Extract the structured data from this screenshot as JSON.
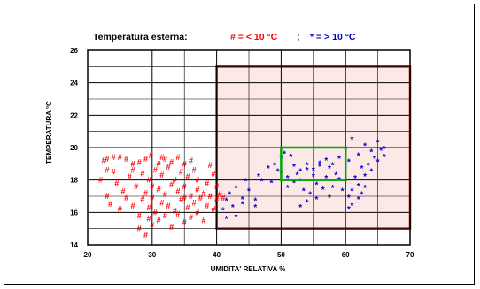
{
  "chart_data": {
    "type": "scatter",
    "title": {
      "main": "Temperatura esterna:",
      "cold_legend": "# = < 10 °C",
      "separator": ";",
      "warm_legend": "* = > 10 °C"
    },
    "xlabel": "UMIDITA' RELATIVA %",
    "ylabel": "TEMPERATURA °C",
    "xlim": [
      20,
      70
    ],
    "ylim": [
      14,
      26
    ],
    "x_ticks": [
      "20",
      "30",
      "40",
      "50",
      "60",
      "70"
    ],
    "y_ticks": [
      "14",
      "16",
      "18",
      "20",
      "22",
      "24",
      "26"
    ],
    "grid": true,
    "colors": {
      "cold": "#ff0000",
      "warm": "#0000cc",
      "outer_zone_border": "#a01010",
      "outer_zone_fill": "#fde8e8",
      "comfort_zone_border": "#00aa00"
    },
    "zones": [
      {
        "name": "outer-zone",
        "x": [
          40,
          70
        ],
        "y": [
          15,
          25
        ]
      },
      {
        "name": "comfort-zone",
        "x": [
          50,
          60
        ],
        "y": [
          18,
          20
        ]
      }
    ],
    "series": [
      {
        "name": "# = < 10 °C",
        "marker": "#",
        "points": [
          [
            22,
            18.0
          ],
          [
            22.5,
            19.2
          ],
          [
            23,
            17.0
          ],
          [
            23,
            19.3
          ],
          [
            23.5,
            16.5
          ],
          [
            24,
            19.4
          ],
          [
            24,
            18.5
          ],
          [
            24.5,
            17.8
          ],
          [
            25,
            19.4
          ],
          [
            25,
            16.2
          ],
          [
            25.5,
            17.3
          ],
          [
            26,
            19.3
          ],
          [
            26.5,
            18.2
          ],
          [
            27,
            16.4
          ],
          [
            27,
            19.0
          ],
          [
            27.5,
            17.6
          ],
          [
            28,
            15.8
          ],
          [
            28,
            19.1
          ],
          [
            28,
            15.0
          ],
          [
            28.5,
            16.8
          ],
          [
            28.5,
            18.4
          ],
          [
            29,
            14.6
          ],
          [
            29,
            17.2
          ],
          [
            29,
            19.3
          ],
          [
            29.5,
            15.6
          ],
          [
            29.5,
            16.3
          ],
          [
            29.5,
            18.0
          ],
          [
            29.8,
            19.5
          ],
          [
            30,
            16.9
          ],
          [
            30,
            17.6
          ],
          [
            30,
            15.2
          ],
          [
            30.5,
            18.6
          ],
          [
            30.5,
            16.0
          ],
          [
            31,
            17.4
          ],
          [
            31,
            19.0
          ],
          [
            31,
            15.5
          ],
          [
            31.5,
            16.6
          ],
          [
            31.5,
            18.3
          ],
          [
            32,
            17.1
          ],
          [
            32,
            19.3
          ],
          [
            32,
            15.8
          ],
          [
            32.5,
            16.4
          ],
          [
            32.5,
            18.8
          ],
          [
            33,
            17.7
          ],
          [
            33,
            19.1
          ],
          [
            33,
            15.1
          ],
          [
            33.5,
            16.1
          ],
          [
            33.5,
            18.0
          ],
          [
            34,
            17.3
          ],
          [
            34,
            19.4
          ],
          [
            34,
            15.9
          ],
          [
            34.5,
            16.8
          ],
          [
            34.5,
            18.5
          ],
          [
            35,
            17.6
          ],
          [
            35,
            19.0
          ],
          [
            35,
            15.4
          ],
          [
            35.5,
            16.3
          ],
          [
            35.5,
            18.2
          ],
          [
            36,
            17.0
          ],
          [
            36,
            19.2
          ],
          [
            36,
            15.7
          ],
          [
            36.5,
            16.6
          ],
          [
            36.5,
            18.6
          ],
          [
            37,
            17.4
          ],
          [
            37,
            18.0
          ],
          [
            37,
            16.0
          ],
          [
            37.5,
            16.9
          ],
          [
            38,
            17.2
          ],
          [
            38,
            15.5
          ],
          [
            38.5,
            16.4
          ],
          [
            38.5,
            17.8
          ],
          [
            39,
            18.9
          ],
          [
            39,
            17.0
          ],
          [
            39.5,
            16.2
          ],
          [
            39.5,
            18.4
          ],
          [
            40,
            17.6
          ],
          [
            40,
            16.8
          ],
          [
            40.5,
            17.1
          ],
          [
            41,
            16.9
          ],
          [
            26,
            16.9
          ],
          [
            23,
            18.6
          ],
          [
            27,
            18.6
          ],
          [
            31.5,
            19.4
          ],
          [
            35,
            16.9
          ]
        ]
      },
      {
        "name": "* = > 10 °C",
        "marker": "*",
        "points": [
          [
            41,
            16.2
          ],
          [
            41.5,
            15.7
          ],
          [
            41.5,
            16.8
          ],
          [
            42,
            17.2
          ],
          [
            42.5,
            16.4
          ],
          [
            43,
            15.8
          ],
          [
            43,
            17.6
          ],
          [
            44,
            16.9
          ],
          [
            44.5,
            18.0
          ],
          [
            45,
            17.4
          ],
          [
            46,
            16.8
          ],
          [
            46.5,
            18.3
          ],
          [
            47,
            18.0
          ],
          [
            48,
            18.8
          ],
          [
            48.5,
            17.9
          ],
          [
            49,
            19.0
          ],
          [
            49.5,
            18.6
          ],
          [
            50,
            19.4
          ],
          [
            50.5,
            19.7
          ],
          [
            51,
            18.2
          ],
          [
            51.5,
            19.5
          ],
          [
            52,
            18.9
          ],
          [
            52.5,
            18.4
          ],
          [
            53,
            18.0
          ],
          [
            53.5,
            17.4
          ],
          [
            54,
            18.7
          ],
          [
            54.5,
            17.2
          ],
          [
            55,
            18.3
          ],
          [
            55.5,
            17.8
          ],
          [
            56,
            18.9
          ],
          [
            56.5,
            17.5
          ],
          [
            57,
            18.2
          ],
          [
            57.5,
            18.8
          ],
          [
            58,
            17.6
          ],
          [
            58.5,
            18.4
          ],
          [
            59,
            18.1
          ],
          [
            59.5,
            17.4
          ],
          [
            60,
            18.0
          ],
          [
            60.5,
            17.0
          ],
          [
            61,
            17.4
          ],
          [
            61.5,
            18.2
          ],
          [
            62,
            17.7
          ],
          [
            62.5,
            18.8
          ],
          [
            63,
            18.3
          ],
          [
            63.5,
            19.0
          ],
          [
            64,
            18.6
          ],
          [
            64.5,
            19.4
          ],
          [
            65,
            19.2
          ],
          [
            65.5,
            19.9
          ],
          [
            66,
            20.0
          ],
          [
            66,
            19.5
          ],
          [
            65,
            20.4
          ],
          [
            64,
            19.8
          ],
          [
            63,
            20.2
          ],
          [
            62,
            19.6
          ],
          [
            61,
            20.6
          ],
          [
            60.5,
            19.2
          ],
          [
            60,
            20.0
          ],
          [
            59,
            19.4
          ],
          [
            58,
            19.0
          ],
          [
            57,
            19.3
          ],
          [
            56,
            19.1
          ],
          [
            55,
            18.7
          ],
          [
            54,
            19.0
          ],
          [
            53,
            18.6
          ],
          [
            52,
            17.9
          ],
          [
            51,
            17.6
          ],
          [
            50,
            18.5
          ],
          [
            62,
            16.9
          ],
          [
            61,
            16.5
          ],
          [
            60.5,
            16.3
          ],
          [
            62.5,
            17.2
          ],
          [
            63,
            17.6
          ],
          [
            57.5,
            17.0
          ],
          [
            55.5,
            16.9
          ],
          [
            54,
            16.7
          ],
          [
            53,
            16.4
          ],
          [
            46,
            16.4
          ],
          [
            44,
            16.6
          ]
        ]
      }
    ]
  }
}
